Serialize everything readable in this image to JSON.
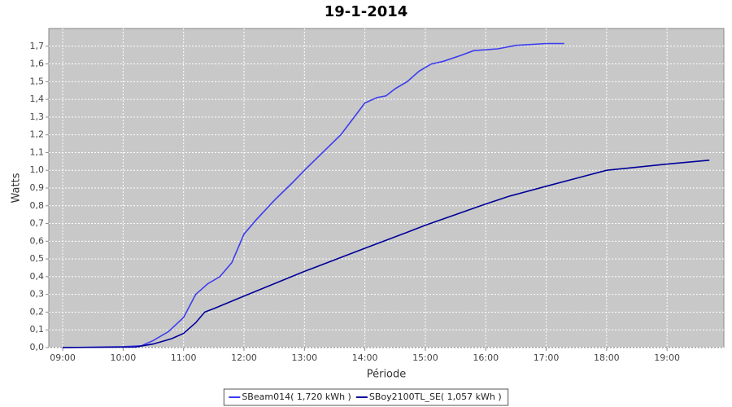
{
  "chart_data": {
    "type": "line",
    "title": "19-1-2014",
    "x_label": "Période",
    "y_label": "Watts",
    "xlim": [
      8.77,
      19.94
    ],
    "ylim": [
      0,
      1.8
    ],
    "xticks": [
      {
        "value": 9,
        "label": "09:00"
      },
      {
        "value": 10,
        "label": "10:00"
      },
      {
        "value": 11,
        "label": "11:00"
      },
      {
        "value": 12,
        "label": "12:00"
      },
      {
        "value": 13,
        "label": "13:00"
      },
      {
        "value": 14,
        "label": "14:00"
      },
      {
        "value": 15,
        "label": "15:00"
      },
      {
        "value": 16,
        "label": "16:00"
      },
      {
        "value": 17,
        "label": "17:00"
      },
      {
        "value": 18,
        "label": "18:00"
      },
      {
        "value": 19,
        "label": "19:00"
      }
    ],
    "yticks": [
      {
        "value": 0,
        "label": "0,0"
      },
      {
        "value": 0.1,
        "label": "0,1"
      },
      {
        "value": 0.2,
        "label": "0,2"
      },
      {
        "value": 0.3,
        "label": "0,3"
      },
      {
        "value": 0.4,
        "label": "0,4"
      },
      {
        "value": 0.5,
        "label": "0,5"
      },
      {
        "value": 0.6,
        "label": "0,6"
      },
      {
        "value": 0.7,
        "label": "0,7"
      },
      {
        "value": 0.8,
        "label": "0,8"
      },
      {
        "value": 0.9,
        "label": "0,9"
      },
      {
        "value": 1.0,
        "label": "1,0"
      },
      {
        "value": 1.1,
        "label": "1,1"
      },
      {
        "value": 1.2,
        "label": "1,2"
      },
      {
        "value": 1.3,
        "label": "1,3"
      },
      {
        "value": 1.4,
        "label": "1,4"
      },
      {
        "value": 1.5,
        "label": "1,5"
      },
      {
        "value": 1.6,
        "label": "1,6"
      },
      {
        "value": 1.7,
        "label": "1,7"
      }
    ],
    "grid": true,
    "background": "#c8c8c8",
    "legend": "bottom",
    "series": [
      {
        "name": "SBeam014( 1,720 kWh )",
        "color": "#3c3cf0",
        "x": [
          9.0,
          9.5,
          10.0,
          10.3,
          10.5,
          10.75,
          11.0,
          11.2,
          11.4,
          11.6,
          11.8,
          12.0,
          12.2,
          12.5,
          12.8,
          13.0,
          13.3,
          13.6,
          13.8,
          14.0,
          14.2,
          14.35,
          14.5,
          14.7,
          14.9,
          15.1,
          15.3,
          15.6,
          15.8,
          16.2,
          16.5,
          17.0,
          17.3
        ],
        "values": [
          0,
          0.002,
          0.005,
          0.01,
          0.04,
          0.09,
          0.17,
          0.3,
          0.36,
          0.4,
          0.48,
          0.64,
          0.72,
          0.83,
          0.93,
          1.0,
          1.1,
          1.2,
          1.29,
          1.38,
          1.41,
          1.42,
          1.46,
          1.5,
          1.56,
          1.6,
          1.615,
          1.65,
          1.675,
          1.685,
          1.705,
          1.715,
          1.715
        ]
      },
      {
        "name": "SBoy2100TL_SE( 1,057 kWh )",
        "color": "#000099",
        "x": [
          9.0,
          10.2,
          10.5,
          10.8,
          11.0,
          11.2,
          11.35,
          11.5,
          12.0,
          13.0,
          14.0,
          14.7,
          15.0,
          16.0,
          16.4,
          17.0,
          17.5,
          18.0,
          19.0,
          19.7
        ],
        "values": [
          0,
          0.003,
          0.02,
          0.05,
          0.08,
          0.14,
          0.2,
          0.22,
          0.29,
          0.43,
          0.56,
          0.65,
          0.69,
          0.81,
          0.855,
          0.91,
          0.955,
          1.0,
          1.035,
          1.057
        ]
      }
    ]
  }
}
